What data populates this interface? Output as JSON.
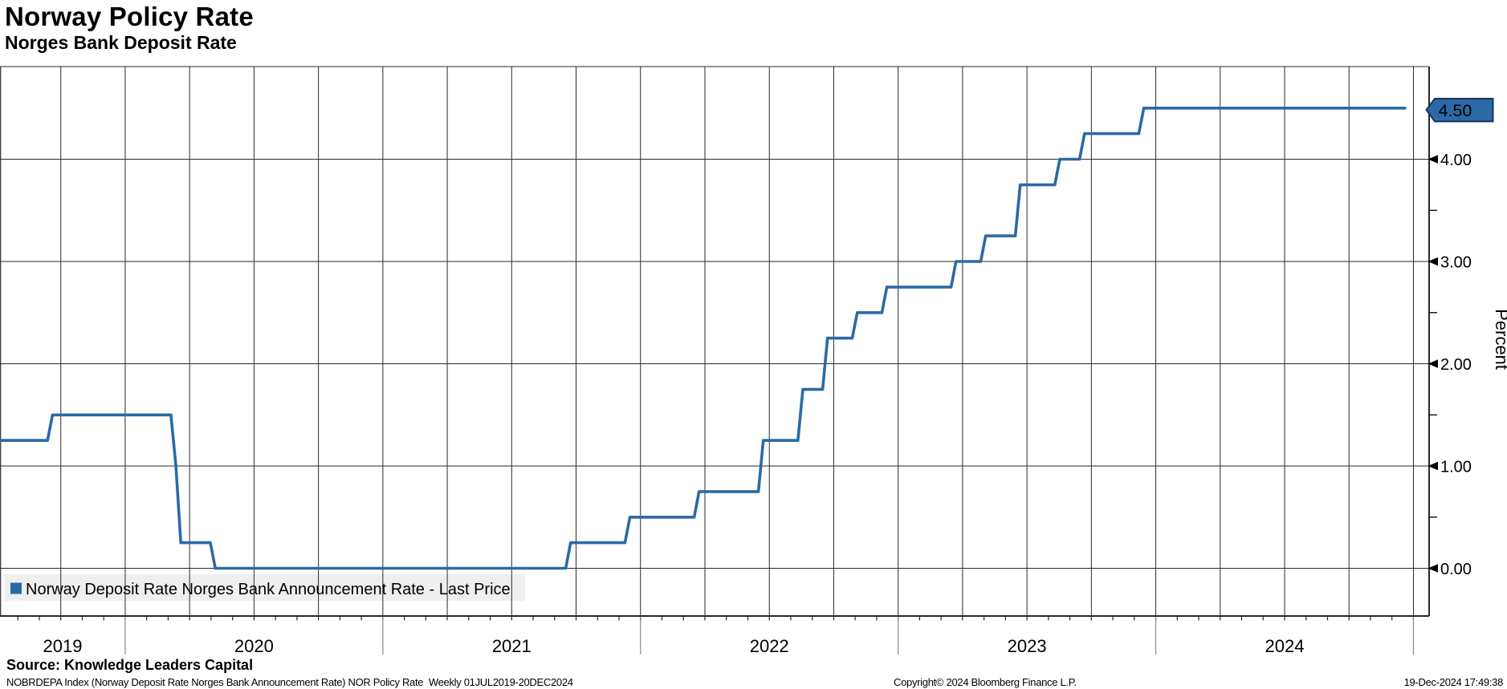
{
  "header": {
    "title": "Norway Policy Rate",
    "subtitle": "Norges Bank Deposit Rate"
  },
  "legend": {
    "label": "Norway Deposit Rate Norges Bank Announcement Rate - Last Price",
    "marker_color": "#2b6aa6"
  },
  "footer": {
    "source": "Source: Knowledge Leaders Capital",
    "ticker_line": "NOBRDEPA Index (Norway Deposit Rate Norges Bank Announcement Rate) NOR Policy Rate  Weekly 01JUL2019-20DEC2024",
    "copyright": "Copyright© 2024 Bloomberg Finance L.P.",
    "timestamp": "19-Dec-2024 17:49:38"
  },
  "chart_data": {
    "type": "line",
    "subtype": "step",
    "title": "Norway Policy Rate",
    "subtitle": "Norges Bank Deposit Rate",
    "ylabel": "Percent",
    "xlabel": "",
    "x_range": [
      "2019-07-01",
      "2025-01-01"
    ],
    "ylim": [
      -0.47,
      4.93
    ],
    "y_ticks_major": [
      0,
      1,
      2,
      3,
      4
    ],
    "y_tick_labels": [
      "0.00",
      "1.00",
      "2.00",
      "3.00",
      "4.00"
    ],
    "y_ticks_minor": [
      0.5,
      1.5,
      2.5,
      3.5
    ],
    "x_year_labels": [
      "2019",
      "2020",
      "2021",
      "2022",
      "2023",
      "2024"
    ],
    "grid": {
      "vertical": "quarterly",
      "horizontal": "major-integers",
      "color": "#2a2a2a"
    },
    "legend_position": "bottom-left",
    "last_price": {
      "value": 4.5,
      "label": "4.50",
      "badge_color": "#2b6aa6",
      "badge_border": "#15325a",
      "text_color": "#ffffff"
    },
    "series": [
      {
        "name": "Norway Deposit Rate Norges Bank Announcement Rate - Last Price",
        "color": "#2b6aa6",
        "points": [
          [
            "2019-07-01",
            1.25
          ],
          [
            "2019-09-13",
            1.25
          ],
          [
            "2019-09-20",
            1.5
          ],
          [
            "2020-03-06",
            1.5
          ],
          [
            "2020-03-13",
            1.0
          ],
          [
            "2020-03-20",
            0.25
          ],
          [
            "2020-05-01",
            0.25
          ],
          [
            "2020-05-08",
            0.0
          ],
          [
            "2021-09-17",
            0.0
          ],
          [
            "2021-09-24",
            0.25
          ],
          [
            "2021-12-10",
            0.25
          ],
          [
            "2021-12-17",
            0.5
          ],
          [
            "2022-03-18",
            0.5
          ],
          [
            "2022-03-25",
            0.75
          ],
          [
            "2022-06-17",
            0.75
          ],
          [
            "2022-06-24",
            1.25
          ],
          [
            "2022-08-12",
            1.25
          ],
          [
            "2022-08-19",
            1.75
          ],
          [
            "2022-09-16",
            1.75
          ],
          [
            "2022-09-23",
            2.25
          ],
          [
            "2022-10-28",
            2.25
          ],
          [
            "2022-11-04",
            2.5
          ],
          [
            "2022-12-09",
            2.5
          ],
          [
            "2022-12-16",
            2.75
          ],
          [
            "2023-03-17",
            2.75
          ],
          [
            "2023-03-24",
            3.0
          ],
          [
            "2023-04-28",
            3.0
          ],
          [
            "2023-05-05",
            3.25
          ],
          [
            "2023-06-16",
            3.25
          ],
          [
            "2023-06-23",
            3.75
          ],
          [
            "2023-08-11",
            3.75
          ],
          [
            "2023-08-18",
            4.0
          ],
          [
            "2023-09-15",
            4.0
          ],
          [
            "2023-09-22",
            4.25
          ],
          [
            "2023-12-08",
            4.25
          ],
          [
            "2023-12-15",
            4.5
          ],
          [
            "2024-12-20",
            4.5
          ]
        ]
      }
    ]
  }
}
